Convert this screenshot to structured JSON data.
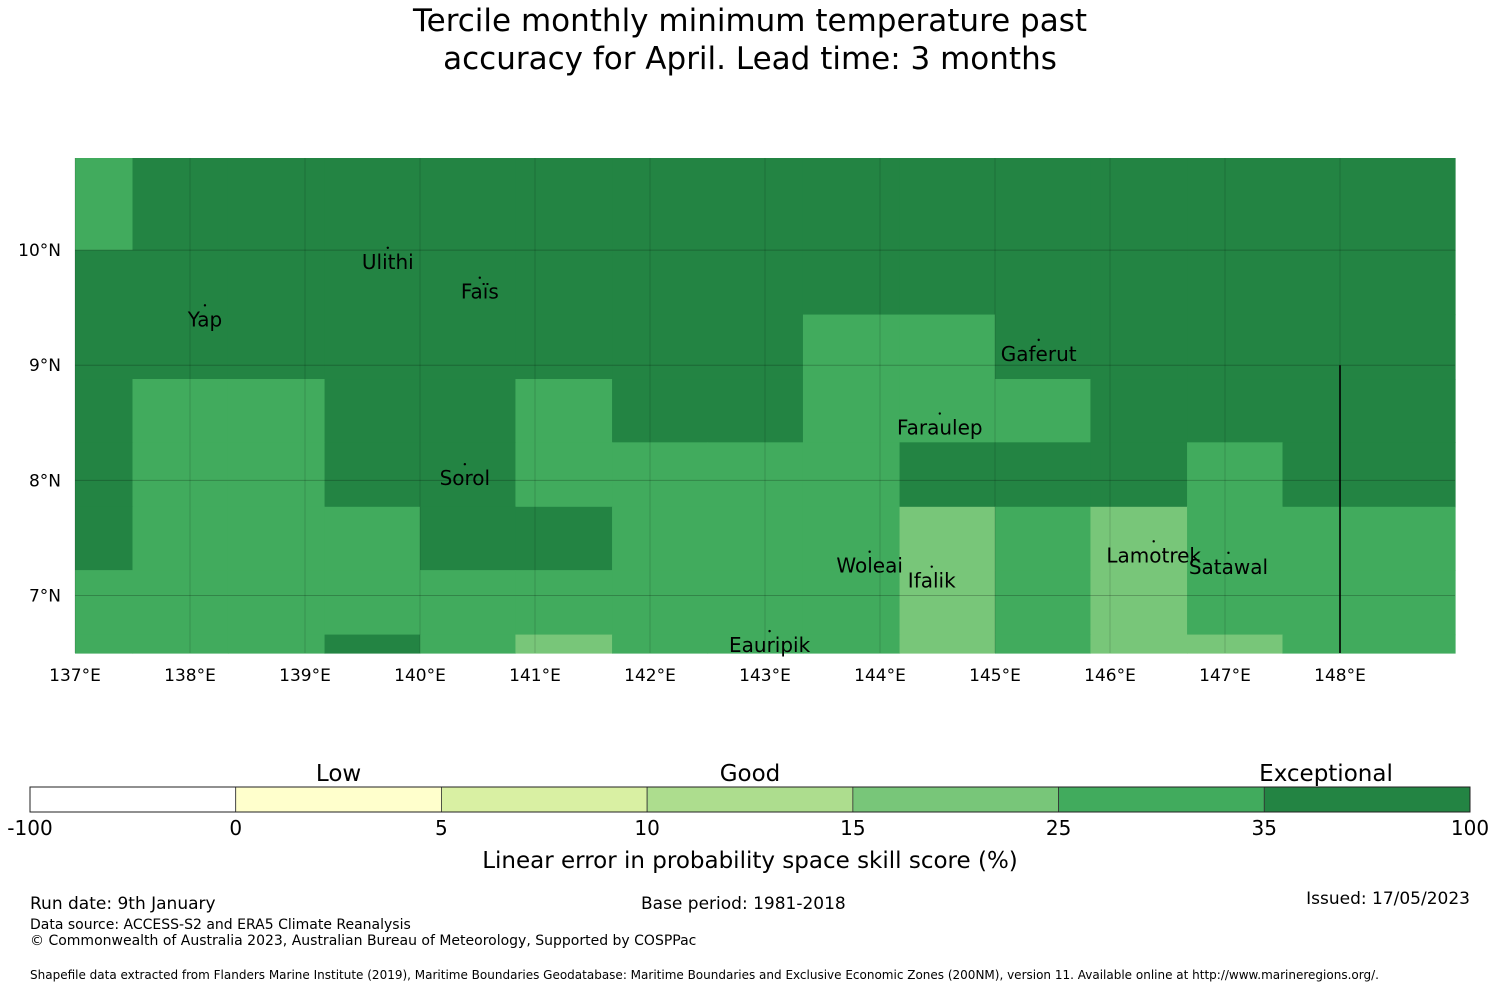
{
  "title": {
    "line1": "Tercile monthly minimum temperature past",
    "line2": "accuracy for April. Lead time: 3 months"
  },
  "map": {
    "lon_range": [
      137,
      149
    ],
    "lat_range": [
      6.5,
      10.8
    ],
    "lat_ticks": [
      {
        "value": 10,
        "label": "10°N"
      },
      {
        "value": 9,
        "label": "9°N"
      },
      {
        "value": 8,
        "label": "8°N"
      },
      {
        "value": 7,
        "label": "7°N"
      }
    ],
    "lon_ticks": [
      {
        "value": 137,
        "label": "137°E"
      },
      {
        "value": 138,
        "label": "138°E"
      },
      {
        "value": 139,
        "label": "139°E"
      },
      {
        "value": 140,
        "label": "140°E"
      },
      {
        "value": 141,
        "label": "141°E"
      },
      {
        "value": 142,
        "label": "142°E"
      },
      {
        "value": 143,
        "label": "143°E"
      },
      {
        "value": 144,
        "label": "144°E"
      },
      {
        "value": 145,
        "label": "145°E"
      },
      {
        "value": 146,
        "label": "146°E"
      },
      {
        "value": 147,
        "label": "147°E"
      },
      {
        "value": 148,
        "label": "148°E"
      }
    ],
    "skill_grid": {
      "lon_edges": [
        137,
        137.5,
        138.33,
        139.17,
        140,
        140.83,
        141.67,
        142.5,
        143.33,
        144.17,
        145,
        145.83,
        146.67,
        147.5,
        149
      ],
      "lat_edges": [
        10.8,
        10.0,
        9.44,
        8.88,
        8.33,
        7.77,
        7.22,
        6.66,
        6.5
      ],
      "classes": [
        [
          5,
          6,
          6,
          6,
          6,
          6,
          6,
          6,
          6,
          6,
          6,
          6,
          6,
          6
        ],
        [
          6,
          6,
          6,
          6,
          6,
          6,
          6,
          6,
          6,
          6,
          6,
          6,
          6,
          6
        ],
        [
          6,
          6,
          6,
          6,
          6,
          6,
          6,
          6,
          5,
          5,
          6,
          6,
          6,
          6
        ],
        [
          6,
          5,
          5,
          6,
          6,
          5,
          6,
          6,
          5,
          5,
          5,
          6,
          6,
          6
        ],
        [
          6,
          5,
          5,
          6,
          6,
          5,
          5,
          5,
          5,
          6,
          6,
          6,
          5,
          6
        ],
        [
          6,
          5,
          5,
          5,
          6,
          6,
          5,
          5,
          5,
          4,
          5,
          4,
          5,
          5
        ],
        [
          5,
          5,
          5,
          5,
          5,
          5,
          5,
          5,
          5,
          4,
          5,
          4,
          5,
          5
        ],
        [
          5,
          5,
          5,
          6,
          5,
          4,
          5,
          5,
          5,
          4,
          5,
          4,
          4,
          5
        ]
      ]
    },
    "boundary_lines": [
      {
        "lon": 148,
        "lat_from": 9,
        "lat_to": 6.5
      }
    ],
    "islands": [
      {
        "name": "Ulithi",
        "lon": 139.72,
        "lat": 10.02
      },
      {
        "name": "Faïs",
        "lon": 140.52,
        "lat": 9.76
      },
      {
        "name": "Yap",
        "lon": 138.13,
        "lat": 9.52
      },
      {
        "name": "Gaferut",
        "lon": 145.38,
        "lat": 9.22
      },
      {
        "name": "Faraulep",
        "lon": 144.52,
        "lat": 8.58
      },
      {
        "name": "Sorol",
        "lon": 140.39,
        "lat": 8.14
      },
      {
        "name": "Woleai",
        "lon": 143.91,
        "lat": 7.38
      },
      {
        "name": "Ifalik",
        "lon": 144.45,
        "lat": 7.25
      },
      {
        "name": "Lamotrek",
        "lon": 146.38,
        "lat": 7.47
      },
      {
        "name": "Satawal",
        "lon": 147.03,
        "lat": 7.37
      },
      {
        "name": "Eauripik",
        "lon": 143.04,
        "lat": 6.69
      }
    ]
  },
  "legend": {
    "categories": [
      "Low",
      "Good",
      "Exceptional"
    ],
    "bins": [
      {
        "from": -100,
        "to": 0,
        "color": "#ffffff"
      },
      {
        "from": 0,
        "to": 5,
        "color": "#ffffcc"
      },
      {
        "from": 5,
        "to": 10,
        "color": "#d9f0a3"
      },
      {
        "from": 10,
        "to": 15,
        "color": "#addd8e"
      },
      {
        "from": 15,
        "to": 25,
        "color": "#78c679"
      },
      {
        "from": 25,
        "to": 35,
        "color": "#41ab5d"
      },
      {
        "from": 35,
        "to": 100,
        "color": "#238443"
      }
    ],
    "tick_labels": [
      "-100",
      "0",
      "5",
      "10",
      "15",
      "25",
      "35",
      "100"
    ],
    "axis_label": "Linear error in probability space skill score (%)"
  },
  "footer": {
    "run_date": "Run date: 9th January",
    "base_period": "Base period: 1981-2018",
    "issued": "Issued: 17/05/2023",
    "data_source": "Data source: ACCESS-S2 and ERA5 Climate Reanalysis",
    "copyright": "© Commonwealth of Australia 2023, Australian Bureau of Meteorology, Supported by COSPPac",
    "shapefile": "Shapefile data extracted from Flanders Marine Institute (2019), Maritime Boundaries Geodatabase: Maritime Boundaries and Exclusive Economic Zones (200NM), version 11. Available online at http://www.marineregions.org/."
  }
}
